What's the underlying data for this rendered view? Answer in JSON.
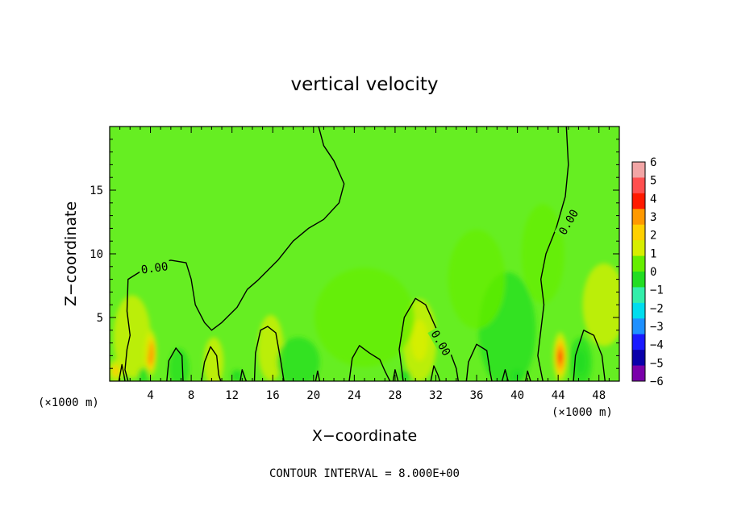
{
  "chart_data": {
    "type": "heatmap",
    "title": "vertical velocity",
    "xlabel": "X−coordinate",
    "ylabel": "Z−coordinate",
    "x_unit_left": "(×1000 m)",
    "x_unit_right": "(×1000 m)",
    "xlim": [
      0,
      50
    ],
    "ylim": [
      0,
      20
    ],
    "x_ticks": [
      4,
      8,
      12,
      16,
      20,
      24,
      28,
      32,
      36,
      40,
      44,
      48
    ],
    "y_ticks": [
      5,
      10,
      15
    ],
    "footer": "CONTOUR INTERVAL = 8.000E+00",
    "contour_labels": [
      {
        "text": "0.00",
        "x": 4.4,
        "z": 8.9,
        "angle": -8
      },
      {
        "text": "0.00",
        "x": 45.0,
        "z": 12.5,
        "angle": -60
      },
      {
        "text": "0.00",
        "x": 32.5,
        "z": 3.0,
        "angle": 60
      }
    ],
    "colorbar": {
      "levels": [
        "6",
        "5",
        "4",
        "3",
        "2",
        "1",
        "0",
        "−1",
        "−2",
        "−3",
        "−4",
        "−5",
        "−6"
      ],
      "colors": [
        "#f2a5a5",
        "#ff4f4f",
        "#ff1a00",
        "#ff9900",
        "#ffd000",
        "#d7ee00",
        "#66ee00",
        "#22dd22",
        "#33eeaa",
        "#00ddee",
        "#1e90ff",
        "#1a1aff",
        "#0a00aa",
        "#7a00aa"
      ]
    },
    "hotspots": [
      {
        "x": 4.0,
        "z": 2.2,
        "sx": 0.45,
        "sz": 1.4,
        "value": 3.5
      },
      {
        "x": 0.6,
        "z": 0.8,
        "sx": 0.5,
        "sz": 0.7,
        "value": 2.0
      },
      {
        "x": 44.2,
        "z": 1.9,
        "sx": 0.5,
        "sz": 1.5,
        "value": 3.6
      },
      {
        "x": 30.4,
        "z": 3.2,
        "sx": 1.2,
        "sz": 2.5,
        "value": 1.1
      },
      {
        "x": 15.8,
        "z": 2.6,
        "sx": 0.9,
        "sz": 2.0,
        "value": 1.0
      },
      {
        "x": 48.5,
        "z": 6.0,
        "sx": 1.5,
        "sz": 2.5,
        "value": 0.8
      },
      {
        "x": 2.2,
        "z": 3.5,
        "sx": 1.3,
        "sz": 2.5,
        "value": 0.6
      },
      {
        "x": 10.2,
        "z": 1.5,
        "sx": 0.7,
        "sz": 1.5,
        "value": 0.6
      },
      {
        "x": 39.0,
        "z": 4.0,
        "sx": 2.0,
        "sz": 3.5,
        "value": -0.9
      },
      {
        "x": 36.0,
        "z": 8.0,
        "sx": 2.0,
        "sz": 3.0,
        "value": -0.4
      },
      {
        "x": 42.5,
        "z": 10.0,
        "sx": 1.5,
        "sz": 3.0,
        "value": -0.4
      },
      {
        "x": 25.0,
        "z": 5.0,
        "sx": 3.5,
        "sz": 3.0,
        "value": -0.35
      },
      {
        "x": 46.2,
        "z": 1.5,
        "sx": 0.8,
        "sz": 1.5,
        "value": -1.4
      },
      {
        "x": 6.8,
        "z": 1.0,
        "sx": 0.7,
        "sz": 1.2,
        "value": -0.9
      },
      {
        "x": 3.3,
        "z": 0.4,
        "sx": 0.4,
        "sz": 0.5,
        "value": -0.9
      },
      {
        "x": 12.5,
        "z": 0.4,
        "sx": 0.4,
        "sz": 0.4,
        "value": -1.4
      },
      {
        "x": 29.0,
        "z": 0.4,
        "sx": 0.4,
        "sz": 0.4,
        "value": -1.4
      },
      {
        "x": 40.0,
        "z": 0.4,
        "sx": 0.4,
        "sz": 0.4,
        "value": -1.2
      },
      {
        "x": 18.5,
        "z": 1.5,
        "sx": 1.5,
        "sz": 1.5,
        "value": -0.5
      }
    ],
    "zero_contours": [
      [
        [
          1.8,
          0
        ],
        [
          1.5,
          0.9
        ],
        [
          1.7,
          2.5
        ],
        [
          2.0,
          3.6
        ],
        [
          1.7,
          5.5
        ],
        [
          1.8,
          8.0
        ],
        [
          3.0,
          8.6
        ],
        [
          4.5,
          9.2
        ],
        [
          6.0,
          9.5
        ],
        [
          7.5,
          9.3
        ],
        [
          8.0,
          8.0
        ],
        [
          8.4,
          6.0
        ],
        [
          9.3,
          4.6
        ],
        [
          10.0,
          4.0
        ],
        [
          11.0,
          4.6
        ],
        [
          12.5,
          5.8
        ],
        [
          13.5,
          7.2
        ],
        [
          14.5,
          7.9
        ],
        [
          16.5,
          9.5
        ],
        [
          18.0,
          11.0
        ],
        [
          19.5,
          12.0
        ],
        [
          21.0,
          12.7
        ],
        [
          22.5,
          14.0
        ],
        [
          23.0,
          15.5
        ],
        [
          22.0,
          17.3
        ],
        [
          21.0,
          18.5
        ],
        [
          20.5,
          20.0
        ]
      ],
      [
        [
          42.5,
          0
        ],
        [
          42.0,
          2.0
        ],
        [
          42.3,
          4.0
        ],
        [
          42.6,
          6.0
        ],
        [
          42.3,
          8.0
        ],
        [
          42.8,
          10.0
        ],
        [
          43.8,
          12.0
        ],
        [
          44.7,
          14.5
        ],
        [
          45.0,
          17.0
        ],
        [
          44.8,
          20.0
        ]
      ],
      [
        [
          28.8,
          0
        ],
        [
          28.4,
          2.5
        ],
        [
          28.9,
          5.0
        ],
        [
          30.0,
          6.5
        ],
        [
          31.0,
          6.0
        ],
        [
          32.0,
          4.2
        ],
        [
          33.3,
          2.5
        ],
        [
          34.0,
          1.0
        ],
        [
          34.2,
          0
        ]
      ],
      [
        [
          14.2,
          0
        ],
        [
          14.3,
          2.2
        ],
        [
          14.8,
          4.0
        ],
        [
          15.5,
          4.3
        ],
        [
          16.3,
          3.8
        ],
        [
          16.8,
          1.5
        ],
        [
          17.1,
          0
        ]
      ],
      [
        [
          23.5,
          0
        ],
        [
          23.8,
          1.8
        ],
        [
          24.5,
          2.8
        ],
        [
          25.5,
          2.2
        ],
        [
          26.5,
          1.7
        ],
        [
          27.0,
          0.8
        ],
        [
          27.5,
          0
        ]
      ],
      [
        [
          35.0,
          0
        ],
        [
          35.2,
          1.5
        ],
        [
          36.0,
          2.9
        ],
        [
          37.0,
          2.4
        ],
        [
          37.3,
          0.8
        ],
        [
          37.5,
          0
        ]
      ],
      [
        [
          45.5,
          0
        ],
        [
          45.7,
          2.0
        ],
        [
          46.5,
          4.0
        ],
        [
          47.5,
          3.6
        ],
        [
          48.3,
          2.0
        ],
        [
          48.6,
          0
        ]
      ],
      [
        [
          9.0,
          0
        ],
        [
          9.3,
          1.5
        ],
        [
          9.9,
          2.7
        ],
        [
          10.5,
          2.0
        ],
        [
          10.7,
          0.5
        ],
        [
          10.9,
          0
        ]
      ],
      [
        [
          5.6,
          0
        ],
        [
          5.8,
          1.6
        ],
        [
          6.5,
          2.6
        ],
        [
          7.1,
          2.0
        ],
        [
          7.2,
          0
        ]
      ],
      [
        [
          0.9,
          0
        ],
        [
          1.2,
          1.3
        ],
        [
          1.4,
          0.5
        ],
        [
          1.5,
          0
        ]
      ],
      [
        [
          12.8,
          0
        ],
        [
          13.0,
          0.9
        ],
        [
          13.3,
          0.2
        ],
        [
          13.4,
          0
        ]
      ],
      [
        [
          20.2,
          0
        ],
        [
          20.4,
          0.8
        ],
        [
          20.6,
          0
        ]
      ],
      [
        [
          27.8,
          0
        ],
        [
          28.0,
          0.9
        ],
        [
          28.3,
          0
        ]
      ],
      [
        [
          31.5,
          0
        ],
        [
          31.8,
          1.2
        ],
        [
          32.2,
          0.5
        ],
        [
          32.4,
          0
        ]
      ],
      [
        [
          38.5,
          0
        ],
        [
          38.8,
          0.9
        ],
        [
          39.1,
          0
        ]
      ],
      [
        [
          40.8,
          0
        ],
        [
          41.0,
          0.8
        ],
        [
          41.3,
          0
        ]
      ]
    ]
  }
}
